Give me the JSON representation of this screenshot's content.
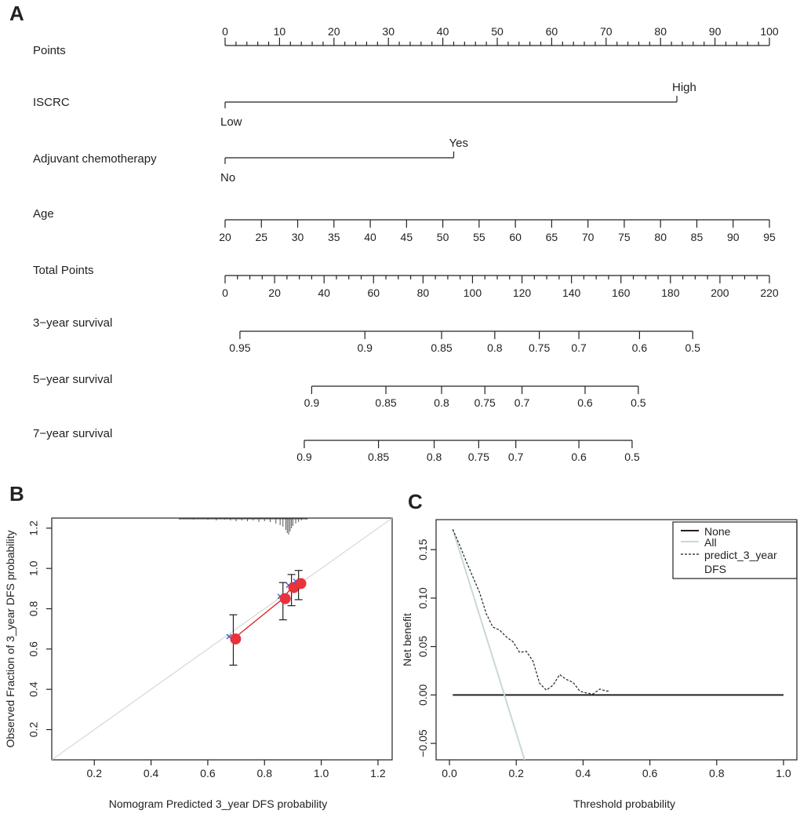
{
  "colors": {
    "ink": "#222222",
    "calibration_line": "#e02020",
    "calibration_point": "#e8333a",
    "ideal_line": "#d0d0d0",
    "apparent_marker": "#3355cc",
    "rug": "#555555",
    "dca_all": "#c8d8d8"
  },
  "chart_data": [
    {
      "panel": "A",
      "type": "nomogram",
      "scales": [
        {
          "name": "Points",
          "kind": "axis",
          "domain": [
            0,
            100
          ],
          "major": [
            0,
            10,
            20,
            30,
            40,
            50,
            60,
            70,
            80,
            90,
            100
          ],
          "minor_step": 2,
          "labels": [
            "0",
            "10",
            "20",
            "30",
            "40",
            "50",
            "60",
            "70",
            "80",
            "90",
            "100"
          ]
        },
        {
          "name": "ISCRC",
          "kind": "binary",
          "points": [
            0,
            83
          ],
          "low_label": "Low",
          "high_label": "High"
        },
        {
          "name": "Adjuvant chemotherapy",
          "kind": "binary",
          "points": [
            0,
            42
          ],
          "low_label": "No",
          "high_label": "Yes"
        },
        {
          "name": "Age",
          "kind": "axis",
          "domain": [
            20,
            95
          ],
          "major": [
            20,
            25,
            30,
            35,
            40,
            45,
            50,
            55,
            60,
            65,
            70,
            75,
            80,
            85,
            90,
            95
          ],
          "minor_step": 0,
          "labels": [
            "20",
            "25",
            "30",
            "35",
            "40",
            "45",
            "50",
            "55",
            "60",
            "65",
            "70",
            "75",
            "80",
            "85",
            "90",
            "95"
          ]
        },
        {
          "name": "Total Points",
          "kind": "axis",
          "domain": [
            0,
            220
          ],
          "major": [
            0,
            20,
            40,
            60,
            80,
            100,
            120,
            140,
            160,
            180,
            200,
            220
          ],
          "minor_step": 5,
          "labels": [
            "0",
            "20",
            "40",
            "60",
            "80",
            "100",
            "120",
            "140",
            "160",
            "180",
            "200",
            "220"
          ]
        },
        {
          "name": "3−year survival",
          "kind": "prob",
          "ticks": [
            {
              "v": 0.95,
              "tp": 6
            },
            {
              "v": 0.9,
              "tp": 56.5
            },
            {
              "v": 0.85,
              "tp": 87.5
            },
            {
              "v": 0.8,
              "tp": 109
            },
            {
              "v": 0.75,
              "tp": 127
            },
            {
              "v": 0.7,
              "tp": 143
            },
            {
              "v": 0.6,
              "tp": 167.5
            },
            {
              "v": 0.5,
              "tp": 189
            }
          ],
          "labels": [
            "0.95",
            "0.9",
            "0.85",
            "0.8",
            "0.75",
            "0.7",
            "0.6",
            "0.5"
          ]
        },
        {
          "name": "5−year survival",
          "kind": "prob",
          "ticks": [
            {
              "v": 0.9,
              "tp": 35
            },
            {
              "v": 0.85,
              "tp": 65
            },
            {
              "v": 0.8,
              "tp": 87.5
            },
            {
              "v": 0.75,
              "tp": 105
            },
            {
              "v": 0.7,
              "tp": 120
            },
            {
              "v": 0.6,
              "tp": 145.5
            },
            {
              "v": 0.5,
              "tp": 167
            }
          ],
          "labels": [
            "0.9",
            "0.85",
            "0.8",
            "0.75",
            "0.7",
            "0.6",
            "0.5"
          ]
        },
        {
          "name": "7−year survival",
          "kind": "prob",
          "ticks": [
            {
              "v": 0.9,
              "tp": 32
            },
            {
              "v": 0.85,
              "tp": 62
            },
            {
              "v": 0.8,
              "tp": 84.5
            },
            {
              "v": 0.75,
              "tp": 102.5
            },
            {
              "v": 0.7,
              "tp": 117.5
            },
            {
              "v": 0.6,
              "tp": 143
            },
            {
              "v": 0.5,
              "tp": 164.5
            }
          ],
          "labels": [
            "0.9",
            "0.85",
            "0.8",
            "0.75",
            "0.7",
            "0.6",
            "0.5"
          ]
        }
      ]
    },
    {
      "panel": "B",
      "type": "scatter",
      "xlabel": "Nomogram Predicted  3_year DFS probability",
      "ylabel": "Observed Fraction of 3_year DFS probability",
      "xlim": [
        0.05,
        1.25
      ],
      "ylim": [
        0.05,
        1.25
      ],
      "x_ticks": [
        0.2,
        0.4,
        0.6,
        0.8,
        1.0,
        1.2
      ],
      "x_tick_labels": [
        "0.2",
        "0.4",
        "0.6",
        "0.8",
        "1.0",
        "1.2"
      ],
      "y_ticks": [
        0.2,
        0.4,
        0.6,
        0.8,
        1.0,
        1.2
      ],
      "y_tick_labels": [
        "0.2",
        "0.4",
        "0.6",
        "0.8",
        "1.0",
        "1.2"
      ],
      "points": [
        {
          "x": 0.69,
          "y": 0.65,
          "lo": 0.52,
          "hi": 0.77,
          "apparent_x": 0.675
        },
        {
          "x": 0.865,
          "y": 0.85,
          "lo": 0.745,
          "hi": 0.93,
          "apparent_x": 0.855
        },
        {
          "x": 0.895,
          "y": 0.905,
          "lo": 0.815,
          "hi": 0.97,
          "apparent_x": 0.885
        },
        {
          "x": 0.92,
          "y": 0.925,
          "lo": 0.845,
          "hi": 0.99,
          "apparent_x": 0.91
        }
      ],
      "rug": [
        [
          0.5,
          1
        ],
        [
          0.55,
          1
        ],
        [
          0.6,
          1
        ],
        [
          0.63,
          2
        ],
        [
          0.66,
          1
        ],
        [
          0.68,
          2
        ],
        [
          0.7,
          3
        ],
        [
          0.72,
          2
        ],
        [
          0.74,
          3
        ],
        [
          0.76,
          2
        ],
        [
          0.78,
          4
        ],
        [
          0.8,
          3
        ],
        [
          0.82,
          4
        ],
        [
          0.84,
          6
        ],
        [
          0.855,
          8
        ],
        [
          0.865,
          10
        ],
        [
          0.875,
          14
        ],
        [
          0.88,
          18
        ],
        [
          0.885,
          20
        ],
        [
          0.89,
          16
        ],
        [
          0.895,
          12
        ],
        [
          0.9,
          9
        ],
        [
          0.91,
          6
        ],
        [
          0.92,
          4
        ],
        [
          0.93,
          2
        ],
        [
          0.95,
          1
        ]
      ]
    },
    {
      "panel": "C",
      "type": "line",
      "xlabel": "Threshold probability",
      "ylabel": "Net benefit",
      "xlim": [
        -0.04,
        1.04
      ],
      "ylim": [
        -0.067,
        0.181
      ],
      "x_ticks": [
        0.0,
        0.2,
        0.4,
        0.6,
        0.8,
        1.0
      ],
      "x_tick_labels": [
        "0.0",
        "0.2",
        "0.4",
        "0.6",
        "0.8",
        "1.0"
      ],
      "y_ticks": [
        -0.05,
        0.0,
        0.05,
        0.1,
        0.15
      ],
      "y_tick_labels": [
        "−0.05",
        "0.00",
        "0.05",
        "0.10",
        "0.15"
      ],
      "legend": {
        "position": "top-right",
        "entries": [
          "None",
          "All",
          "predict_3_year",
          "DFS"
        ]
      },
      "series": [
        {
          "name": "None",
          "style": "solid",
          "x": [
            0.01,
            1.0
          ],
          "y": [
            0.0,
            0.0
          ]
        },
        {
          "name": "All",
          "style": "solid-light",
          "x": [
            0.01,
            0.225
          ],
          "y": [
            0.171,
            -0.067
          ]
        },
        {
          "name": "predict_3_year DFS",
          "style": "dashed",
          "x": [
            0.01,
            0.03,
            0.05,
            0.07,
            0.09,
            0.11,
            0.13,
            0.15,
            0.17,
            0.19,
            0.21,
            0.23,
            0.25,
            0.27,
            0.29,
            0.31,
            0.33,
            0.35,
            0.37,
            0.39,
            0.41,
            0.43,
            0.45,
            0.47,
            0.48
          ],
          "y": [
            0.171,
            0.155,
            0.138,
            0.122,
            0.106,
            0.084,
            0.07,
            0.067,
            0.06,
            0.055,
            0.044,
            0.045,
            0.035,
            0.012,
            0.005,
            0.01,
            0.021,
            0.016,
            0.013,
            0.004,
            0.002,
            0.001,
            0.006,
            0.004,
            0.004
          ]
        }
      ]
    }
  ],
  "figure": {
    "panel_a_label": "A",
    "panel_b_label": "B",
    "panel_c_label": "C"
  }
}
